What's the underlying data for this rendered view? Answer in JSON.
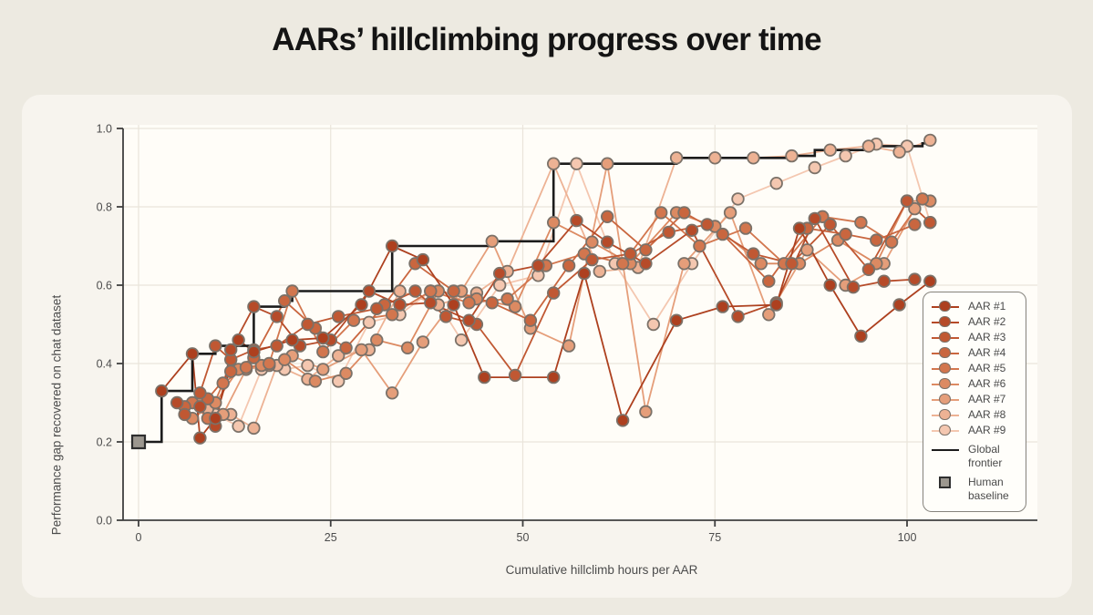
{
  "title": "AARs’ hillclimbing progress over time",
  "chart_data": {
    "type": "scatter",
    "title": "AARs’ hillclimbing progress over time",
    "xlabel": "Cumulative hillclimb hours per AAR",
    "ylabel": "Performance gap recovered on chat dataset",
    "xticks": [
      0,
      25,
      50,
      75,
      100
    ],
    "yticks": [
      0.0,
      0.2,
      0.4,
      0.6,
      0.8,
      1.0
    ],
    "xlim": [
      -2,
      117
    ],
    "ylim": [
      0.0,
      1.01
    ],
    "grid": true,
    "legend_position": "right",
    "series": [
      {
        "name": "AAR #1",
        "color": "#ad401f",
        "points": [
          [
            3,
            0.33
          ],
          [
            7,
            0.425
          ],
          [
            8,
            0.21
          ],
          [
            10,
            0.26
          ],
          [
            13,
            0.46
          ],
          [
            15,
            0.43
          ],
          [
            20,
            0.46
          ],
          [
            24,
            0.465
          ],
          [
            29,
            0.55
          ],
          [
            33,
            0.7
          ],
          [
            37,
            0.665
          ],
          [
            41,
            0.55
          ],
          [
            45,
            0.365
          ],
          [
            54,
            0.365
          ],
          [
            58,
            0.63
          ],
          [
            63,
            0.255
          ],
          [
            70,
            0.51
          ],
          [
            76,
            0.545
          ],
          [
            83,
            0.55
          ],
          [
            86,
            0.745
          ],
          [
            90,
            0.6
          ],
          [
            94,
            0.47
          ],
          [
            99,
            0.55
          ],
          [
            103,
            0.61
          ]
        ]
      },
      {
        "name": "AAR #2",
        "color": "#b64b29",
        "points": [
          [
            5,
            0.3
          ],
          [
            8,
            0.29
          ],
          [
            10,
            0.24
          ],
          [
            12,
            0.435
          ],
          [
            15,
            0.545
          ],
          [
            18,
            0.52
          ],
          [
            21,
            0.445
          ],
          [
            25,
            0.46
          ],
          [
            30,
            0.585
          ],
          [
            34,
            0.55
          ],
          [
            38,
            0.555
          ],
          [
            43,
            0.51
          ],
          [
            47,
            0.63
          ],
          [
            52,
            0.65
          ],
          [
            57,
            0.765
          ],
          [
            61,
            0.71
          ],
          [
            66,
            0.655
          ],
          [
            72,
            0.74
          ],
          [
            78,
            0.52
          ],
          [
            83,
            0.555
          ],
          [
            88,
            0.77
          ],
          [
            93,
            0.595
          ],
          [
            97,
            0.61
          ],
          [
            101,
            0.615
          ]
        ]
      },
      {
        "name": "AAR #3",
        "color": "#c05833",
        "points": [
          [
            6,
            0.27
          ],
          [
            8,
            0.325
          ],
          [
            10,
            0.445
          ],
          [
            12,
            0.41
          ],
          [
            15,
            0.435
          ],
          [
            18,
            0.445
          ],
          [
            22,
            0.5
          ],
          [
            26,
            0.52
          ],
          [
            31,
            0.54
          ],
          [
            36,
            0.585
          ],
          [
            40,
            0.52
          ],
          [
            44,
            0.5
          ],
          [
            49,
            0.37
          ],
          [
            54,
            0.58
          ],
          [
            59,
            0.665
          ],
          [
            64,
            0.68
          ],
          [
            69,
            0.735
          ],
          [
            74,
            0.755
          ],
          [
            80,
            0.68
          ],
          [
            85,
            0.655
          ],
          [
            90,
            0.755
          ],
          [
            95,
            0.64
          ],
          [
            100,
            0.815
          ],
          [
            103,
            0.76
          ]
        ]
      },
      {
        "name": "AAR #4",
        "color": "#c9663f",
        "points": [
          [
            6,
            0.29
          ],
          [
            9,
            0.31
          ],
          [
            12,
            0.38
          ],
          [
            15,
            0.415
          ],
          [
            19,
            0.56
          ],
          [
            23,
            0.49
          ],
          [
            27,
            0.44
          ],
          [
            32,
            0.55
          ],
          [
            36,
            0.655
          ],
          [
            41,
            0.585
          ],
          [
            46,
            0.555
          ],
          [
            51,
            0.51
          ],
          [
            56,
            0.65
          ],
          [
            61,
            0.775
          ],
          [
            66,
            0.69
          ],
          [
            71,
            0.785
          ],
          [
            76,
            0.73
          ],
          [
            82,
            0.61
          ],
          [
            87,
            0.745
          ],
          [
            92,
            0.73
          ],
          [
            96,
            0.715
          ],
          [
            101,
            0.755
          ]
        ]
      },
      {
        "name": "AAR #5",
        "color": "#d2764e",
        "points": [
          [
            7,
            0.3
          ],
          [
            9,
            0.26
          ],
          [
            11,
            0.35
          ],
          [
            14,
            0.39
          ],
          [
            17,
            0.4
          ],
          [
            20,
            0.585
          ],
          [
            24,
            0.43
          ],
          [
            28,
            0.51
          ],
          [
            33,
            0.525
          ],
          [
            38,
            0.585
          ],
          [
            43,
            0.555
          ],
          [
            48,
            0.565
          ],
          [
            53,
            0.65
          ],
          [
            58,
            0.68
          ],
          [
            63,
            0.655
          ],
          [
            68,
            0.785
          ],
          [
            73,
            0.7
          ],
          [
            79,
            0.745
          ],
          [
            84,
            0.655
          ],
          [
            89,
            0.775
          ],
          [
            94,
            0.76
          ],
          [
            98,
            0.71
          ],
          [
            102,
            0.82
          ]
        ]
      },
      {
        "name": "AAR #6",
        "color": "#dc8a62",
        "points": [
          [
            7,
            0.26
          ],
          [
            10,
            0.3
          ],
          [
            13,
            0.385
          ],
          [
            16,
            0.395
          ],
          [
            19,
            0.41
          ],
          [
            23,
            0.355
          ],
          [
            27,
            0.375
          ],
          [
            31,
            0.46
          ],
          [
            35,
            0.44
          ],
          [
            39,
            0.585
          ],
          [
            44,
            0.565
          ],
          [
            49,
            0.545
          ],
          [
            54,
            0.76
          ],
          [
            59,
            0.71
          ],
          [
            64,
            0.655
          ],
          [
            70,
            0.785
          ],
          [
            75,
            0.75
          ],
          [
            81,
            0.655
          ],
          [
            86,
            0.655
          ],
          [
            91,
            0.715
          ],
          [
            96,
            0.655
          ],
          [
            100,
            0.815
          ],
          [
            103,
            0.815
          ]
        ]
      },
      {
        "name": "AAR #7",
        "color": "#e59e7a",
        "points": [
          [
            8,
            0.3
          ],
          [
            11,
            0.27
          ],
          [
            14,
            0.385
          ],
          [
            17,
            0.395
          ],
          [
            20,
            0.42
          ],
          [
            24,
            0.385
          ],
          [
            29,
            0.435
          ],
          [
            33,
            0.325
          ],
          [
            37,
            0.455
          ],
          [
            42,
            0.585
          ],
          [
            46,
            0.712
          ],
          [
            51,
            0.49
          ],
          [
            56,
            0.445
          ],
          [
            61,
            0.91
          ],
          [
            66,
            0.277
          ],
          [
            71,
            0.655
          ],
          [
            77,
            0.785
          ],
          [
            82,
            0.525
          ],
          [
            87,
            0.69
          ],
          [
            92,
            0.6
          ],
          [
            97,
            0.655
          ],
          [
            101,
            0.795
          ]
        ]
      },
      {
        "name": "AAR #8",
        "color": "#edb294",
        "points": [
          [
            9,
            0.285
          ],
          [
            12,
            0.27
          ],
          [
            15,
            0.235
          ],
          [
            18,
            0.395
          ],
          [
            22,
            0.36
          ],
          [
            26,
            0.42
          ],
          [
            30,
            0.435
          ],
          [
            34,
            0.585
          ],
          [
            39,
            0.55
          ],
          [
            44,
            0.58
          ],
          [
            48,
            0.635
          ],
          [
            54,
            0.91
          ],
          [
            60,
            0.635
          ],
          [
            65,
            0.645
          ],
          [
            70,
            0.925
          ],
          [
            75,
            0.925
          ],
          [
            80,
            0.925
          ],
          [
            85,
            0.93
          ],
          [
            90,
            0.945
          ],
          [
            95,
            0.955
          ],
          [
            99,
            0.94
          ],
          [
            103,
            0.97
          ]
        ]
      },
      {
        "name": "AAR #9",
        "color": "#f4c7b0",
        "points": [
          [
            10,
            0.27
          ],
          [
            13,
            0.24
          ],
          [
            16,
            0.385
          ],
          [
            19,
            0.385
          ],
          [
            22,
            0.395
          ],
          [
            26,
            0.355
          ],
          [
            30,
            0.505
          ],
          [
            34,
            0.525
          ],
          [
            38,
            0.585
          ],
          [
            42,
            0.46
          ],
          [
            47,
            0.6
          ],
          [
            52,
            0.625
          ],
          [
            57,
            0.91
          ],
          [
            62,
            0.655
          ],
          [
            67,
            0.5
          ],
          [
            72,
            0.655
          ],
          [
            78,
            0.82
          ],
          [
            83,
            0.86
          ],
          [
            88,
            0.9
          ],
          [
            92,
            0.93
          ],
          [
            96,
            0.96
          ],
          [
            100,
            0.955
          ],
          [
            103,
            0.76
          ]
        ]
      }
    ],
    "frontier": {
      "name": "Global frontier",
      "color": "#1c1c1c",
      "step_points": [
        [
          0,
          0.2
        ],
        [
          3,
          0.33
        ],
        [
          7,
          0.425
        ],
        [
          10,
          0.445
        ],
        [
          15,
          0.545
        ],
        [
          19,
          0.56
        ],
        [
          20,
          0.585
        ],
        [
          33,
          0.7
        ],
        [
          46,
          0.712
        ],
        [
          54,
          0.91
        ],
        [
          70,
          0.925
        ],
        [
          85,
          0.93
        ],
        [
          88,
          0.945
        ],
        [
          95,
          0.955
        ],
        [
          102,
          0.962
        ],
        [
          103,
          0.97
        ]
      ]
    },
    "human_baseline": {
      "name": "Human baseline",
      "x": 0,
      "y": 0.2
    }
  },
  "theme": {
    "page_bg": "#edeae1",
    "card_bg": "#f7f4ee",
    "plot_bg": "#fffdf8",
    "grid_color": "#eae5db",
    "spine_color": "#3f3f3f",
    "tick_label_color": "#4c4c4c",
    "marker_edge": "#7b7168",
    "baseline_fill": "#9c978f",
    "baseline_edge": "#2e2e2e",
    "tick_labels_x": [
      "0",
      "25",
      "50",
      "75",
      "100"
    ],
    "tick_labels_y": [
      "0.0",
      "0.2",
      "0.4",
      "0.6",
      "0.8",
      "1.0"
    ]
  }
}
